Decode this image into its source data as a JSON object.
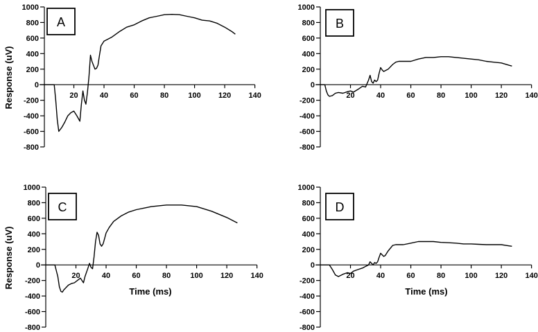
{
  "figure": {
    "ylabel": "Response (uV)",
    "xlabel": "Time (ms)"
  },
  "chart_data": [
    {
      "panel": "A",
      "type": "line",
      "title": "A",
      "xlabel": "",
      "ylabel": "Response (uV)",
      "xlim": [
        0,
        140
      ],
      "ylim": [
        -800,
        1000
      ],
      "xticks": [
        20,
        40,
        60,
        80,
        100,
        120,
        140
      ],
      "yticks": [
        -800,
        -600,
        -400,
        -200,
        0,
        200,
        400,
        600,
        800,
        1000
      ],
      "series": [
        {
          "name": "A",
          "x": [
            0,
            4,
            7,
            8,
            9,
            10,
            12,
            14,
            16,
            18,
            20,
            22,
            24,
            25,
            26,
            27,
            28,
            29,
            30,
            31,
            32,
            33,
            34,
            35,
            36,
            37,
            38,
            40,
            42,
            45,
            50,
            55,
            60,
            65,
            70,
            75,
            80,
            85,
            90,
            95,
            100,
            105,
            110,
            115,
            120,
            125,
            127
          ],
          "y": [
            0,
            0,
            0,
            -200,
            -450,
            -600,
            -550,
            -480,
            -400,
            -360,
            -340,
            -400,
            -470,
            -250,
            -80,
            -200,
            -250,
            -100,
            100,
            380,
            300,
            250,
            200,
            210,
            250,
            380,
            500,
            560,
            580,
            610,
            680,
            740,
            770,
            820,
            860,
            880,
            900,
            905,
            900,
            880,
            860,
            830,
            820,
            790,
            740,
            680,
            650
          ]
        }
      ]
    },
    {
      "panel": "B",
      "type": "line",
      "title": "B",
      "xlabel": "",
      "ylabel": "",
      "xlim": [
        0,
        140
      ],
      "ylim": [
        -800,
        1000
      ],
      "xticks": [
        20,
        40,
        60,
        80,
        100,
        120,
        140
      ],
      "yticks": [
        -800,
        -600,
        -400,
        -200,
        0,
        200,
        400,
        600,
        800,
        1000
      ],
      "series": [
        {
          "name": "B",
          "x": [
            0,
            3,
            4,
            5,
            6,
            8,
            10,
            12,
            15,
            18,
            20,
            22,
            25,
            28,
            30,
            32,
            33,
            34,
            35,
            36,
            37,
            38,
            39,
            40,
            41,
            42,
            43,
            44,
            45,
            48,
            50,
            52,
            55,
            60,
            65,
            70,
            75,
            80,
            85,
            90,
            95,
            100,
            105,
            110,
            115,
            120,
            125,
            127
          ],
          "y": [
            0,
            0,
            -80,
            -130,
            -150,
            -140,
            -110,
            -100,
            -110,
            -90,
            -80,
            -95,
            -60,
            -20,
            -30,
            60,
            120,
            40,
            20,
            60,
            40,
            60,
            150,
            220,
            190,
            170,
            180,
            190,
            200,
            260,
            290,
            300,
            300,
            300,
            330,
            350,
            350,
            360,
            360,
            350,
            340,
            330,
            320,
            300,
            290,
            280,
            250,
            240
          ]
        }
      ]
    },
    {
      "panel": "C",
      "type": "line",
      "title": "C",
      "xlabel": "Time (ms)",
      "ylabel": "Response (uV)",
      "xlim": [
        0,
        140
      ],
      "ylim": [
        -800,
        1000
      ],
      "xticks": [
        20,
        40,
        60,
        80,
        100,
        120,
        140
      ],
      "yticks": [
        -800,
        -600,
        -400,
        -200,
        0,
        200,
        400,
        600,
        800,
        1000
      ],
      "series": [
        {
          "name": "C",
          "x": [
            0,
            6,
            8,
            9,
            10,
            11,
            12,
            13,
            15,
            17,
            19,
            21,
            23,
            25,
            26,
            28,
            29,
            30,
            31,
            32,
            33,
            34,
            35,
            36,
            37,
            38,
            39,
            40,
            42,
            45,
            50,
            55,
            60,
            65,
            70,
            75,
            80,
            85,
            90,
            95,
            100,
            105,
            110,
            115,
            120,
            125,
            127
          ],
          "y": [
            0,
            0,
            -150,
            -280,
            -340,
            -350,
            -320,
            -300,
            -260,
            -240,
            -230,
            -200,
            -170,
            -230,
            -150,
            -40,
            20,
            -30,
            -50,
            100,
            300,
            420,
            380,
            270,
            240,
            270,
            340,
            410,
            480,
            560,
            630,
            680,
            710,
            730,
            750,
            760,
            770,
            770,
            770,
            760,
            750,
            720,
            690,
            650,
            610,
            560,
            540
          ]
        }
      ]
    },
    {
      "panel": "D",
      "type": "line",
      "title": "D",
      "xlabel": "Time (ms)",
      "ylabel": "",
      "xlim": [
        0,
        140
      ],
      "ylim": [
        -800,
        1000
      ],
      "xticks": [
        20,
        40,
        60,
        80,
        100,
        120,
        140
      ],
      "yticks": [
        -800,
        -600,
        -400,
        -200,
        0,
        200,
        400,
        600,
        800,
        1000
      ],
      "series": [
        {
          "name": "D",
          "x": [
            0,
            6,
            8,
            10,
            12,
            15,
            18,
            20,
            22,
            25,
            28,
            30,
            32,
            33,
            34,
            35,
            36,
            37,
            38,
            39,
            40,
            41,
            42,
            43,
            44,
            45,
            48,
            50,
            55,
            60,
            65,
            70,
            75,
            80,
            85,
            90,
            95,
            100,
            105,
            110,
            115,
            120,
            125,
            127
          ],
          "y": [
            0,
            0,
            -60,
            -130,
            -150,
            -120,
            -100,
            -110,
            -80,
            -60,
            -40,
            -20,
            0,
            40,
            20,
            0,
            30,
            20,
            40,
            100,
            150,
            130,
            110,
            120,
            150,
            180,
            250,
            260,
            260,
            280,
            300,
            300,
            300,
            290,
            285,
            280,
            270,
            270,
            265,
            260,
            260,
            260,
            245,
            240
          ]
        }
      ]
    }
  ]
}
